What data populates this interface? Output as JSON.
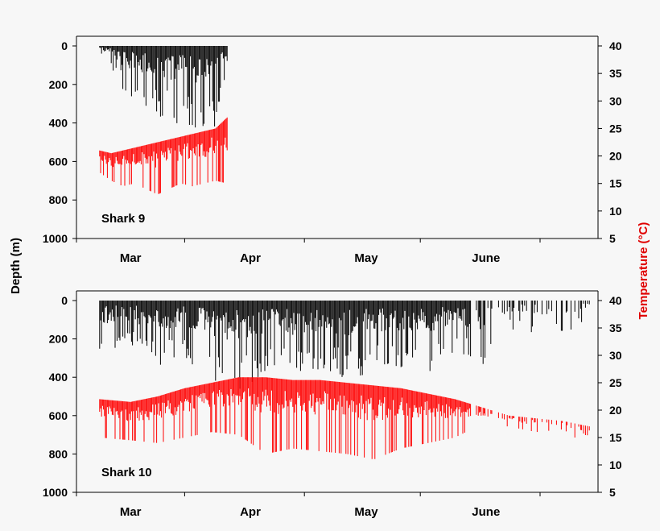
{
  "chart_data": {
    "type": "line",
    "shared": {
      "ylabel_left": "Depth (m)",
      "ylabel_right": "Temperature (°C)",
      "ylabel_right_color": "#e00000",
      "depth_color": "#000000",
      "temperature_color": "#ff0000",
      "depth_axis": {
        "lim": [
          1000,
          0
        ],
        "ticks": [
          0,
          200,
          400,
          600,
          800,
          1000
        ],
        "inverted": true
      },
      "temperature_axis": {
        "lim": [
          5,
          40
        ],
        "ticks": [
          5,
          10,
          15,
          20,
          25,
          30,
          35,
          40
        ]
      },
      "x_axis": {
        "lim": [
          "2005-02-15",
          "2005-06-30"
        ],
        "month_ticks": [
          "2005-02-15",
          "2005-03-15",
          "2005-04-15",
          "2005-05-15",
          "2005-06-15"
        ],
        "month_labels": [
          "Mar",
          "Apr",
          "May",
          "June"
        ],
        "month_label_dates": [
          "2005-03-01",
          "2005-04-01",
          "2005-05-01",
          "2005-06-01"
        ]
      },
      "grid": false,
      "legend": "none"
    },
    "panels": [
      {
        "label": "Shark 9",
        "date_range": [
          "2005-02-21",
          "2005-03-26"
        ],
        "series": [
          {
            "name": "",
            "quantity": "depth",
            "dates": [
              "2005-02-21",
              "2005-02-24",
              "2005-02-27",
              "2005-03-02",
              "2005-03-05",
              "2005-03-08",
              "2005-03-11",
              "2005-03-14",
              "2005-03-17",
              "2005-03-20",
              "2005-03-23",
              "2005-03-26"
            ],
            "min_depth_m": [
              0,
              0,
              0,
              0,
              0,
              0,
              0,
              0,
              0,
              0,
              0,
              0
            ],
            "max_depth_m": [
              50,
              90,
              320,
              250,
              330,
              370,
              390,
              410,
              430,
              440,
              460,
              100
            ]
          },
          {
            "name": "",
            "quantity": "temperature",
            "dates": [
              "2005-02-21",
              "2005-02-24",
              "2005-02-27",
              "2005-03-02",
              "2005-03-05",
              "2005-03-08",
              "2005-03-11",
              "2005-03-14",
              "2005-03-17",
              "2005-03-20",
              "2005-03-23",
              "2005-03-26"
            ],
            "max_temp_c": [
              21,
              20.5,
              21,
              21.5,
              22,
              22.5,
              23,
              23.5,
              24,
              24.5,
              25,
              27
            ],
            "min_temp_c": [
              17,
              15.5,
              14.5,
              15,
              14,
              13,
              14,
              15,
              14.5,
              15,
              15.5,
              15
            ]
          }
        ]
      },
      {
        "label": "Shark 10",
        "date_range": [
          "2005-02-21",
          "2005-06-28"
        ],
        "series": [
          {
            "name": "",
            "quantity": "depth",
            "dates": [
              "2005-02-21",
              "2005-03-01",
              "2005-03-08",
              "2005-03-15",
              "2005-03-22",
              "2005-03-29",
              "2005-04-05",
              "2005-04-12",
              "2005-04-19",
              "2005-04-26",
              "2005-05-03",
              "2005-05-10",
              "2005-05-17",
              "2005-05-24",
              "2005-05-31",
              "2005-06-07",
              "2005-06-14",
              "2005-06-21",
              "2005-06-28"
            ],
            "min_depth_m": [
              0,
              0,
              0,
              0,
              0,
              0,
              0,
              0,
              0,
              0,
              0,
              0,
              0,
              0,
              0,
              0,
              0,
              0,
              0
            ],
            "max_depth_m": [
              270,
              240,
              350,
              300,
              420,
              480,
              380,
              420,
              360,
              410,
              390,
              350,
              410,
              260,
              390,
              150,
              170,
              180,
              90
            ]
          },
          {
            "name": "",
            "quantity": "temperature",
            "dates": [
              "2005-02-21",
              "2005-03-01",
              "2005-03-08",
              "2005-03-15",
              "2005-03-22",
              "2005-03-29",
              "2005-04-05",
              "2005-04-12",
              "2005-04-19",
              "2005-04-26",
              "2005-05-03",
              "2005-05-10",
              "2005-05-17",
              "2005-05-24",
              "2005-05-31",
              "2005-06-07",
              "2005-06-14",
              "2005-06-21",
              "2005-06-28"
            ],
            "max_temp_c": [
              22,
              21.5,
              22.5,
              24,
              25,
              26,
              26,
              25.5,
              25.5,
              25,
              24.5,
              24,
              23,
              22,
              20.5,
              19,
              18.5,
              18,
              17
            ],
            "min_temp_c": [
              15,
              14.5,
              14,
              15,
              16,
              15.5,
              12,
              13,
              12.5,
              12,
              11,
              13,
              14,
              15,
              17.5,
              17,
              16,
              16.5,
              13
            ]
          }
        ]
      }
    ]
  }
}
